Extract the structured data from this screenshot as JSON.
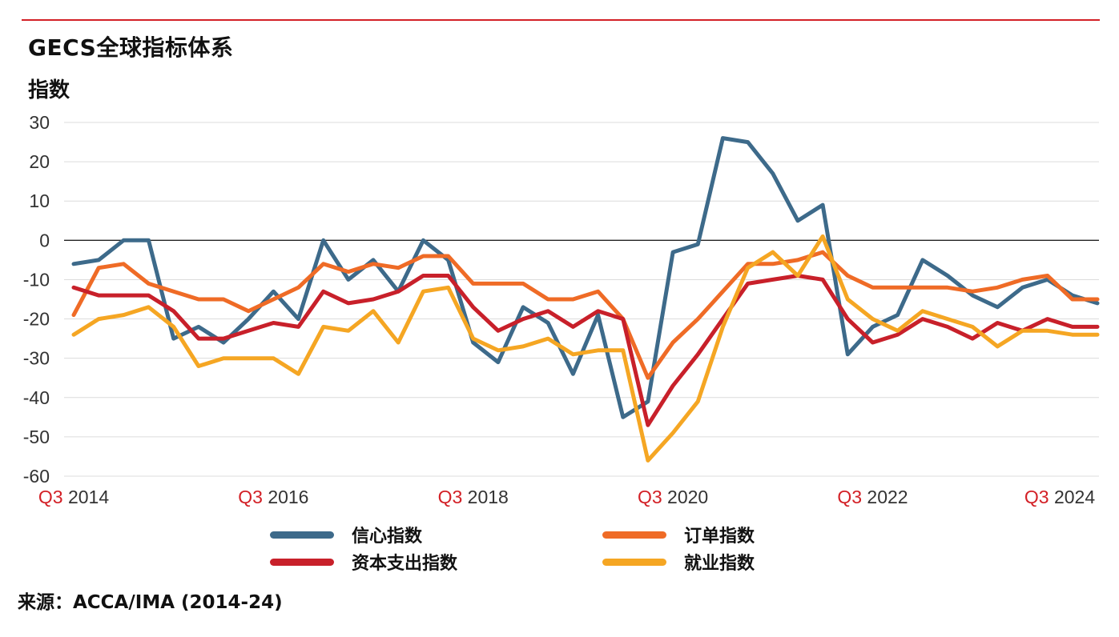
{
  "title": "GECS全球指标体系",
  "source": "来源：ACCA/IMA (2014-24)",
  "chart_data": {
    "type": "line",
    "title": "GECS全球指标体系",
    "ylabel": "指数",
    "xlabel": "",
    "ylim": [
      -60,
      30
    ],
    "yticks": [
      30,
      20,
      10,
      0,
      -10,
      -20,
      -30,
      -40,
      -50,
      -60
    ],
    "grid": true,
    "legend_position": "bottom",
    "x": [
      "Q3 2014",
      "Q4 2014",
      "Q1 2015",
      "Q2 2015",
      "Q3 2015",
      "Q4 2015",
      "Q1 2016",
      "Q2 2016",
      "Q3 2016",
      "Q4 2016",
      "Q1 2017",
      "Q2 2017",
      "Q3 2017",
      "Q4 2017",
      "Q1 2018",
      "Q2 2018",
      "Q3 2018",
      "Q4 2018",
      "Q1 2019",
      "Q2 2019",
      "Q3 2019",
      "Q4 2019",
      "Q1 2020",
      "Q2 2020",
      "Q3 2020",
      "Q4 2020",
      "Q1 2021",
      "Q2 2021",
      "Q3 2021",
      "Q4 2021",
      "Q1 2022",
      "Q2 2022",
      "Q3 2022",
      "Q4 2022",
      "Q1 2023",
      "Q2 2023",
      "Q3 2023",
      "Q4 2023",
      "Q1 2024",
      "Q2 2024",
      "Q3 2024",
      "Q4 2024"
    ],
    "xtick_labels": [
      {
        "index": 0,
        "q": "Q3",
        "year": "2014"
      },
      {
        "index": 8,
        "q": "Q3",
        "year": "2016"
      },
      {
        "index": 16,
        "q": "Q3",
        "year": "2018"
      },
      {
        "index": 24,
        "q": "Q3",
        "year": "2020"
      },
      {
        "index": 32,
        "q": "Q3",
        "year": "2022"
      },
      {
        "index": 40,
        "q": "Q3",
        "year": "2024"
      }
    ],
    "series": [
      {
        "name": "信心指数",
        "color": "#3d6a8a",
        "values": [
          -6,
          -5,
          0,
          0,
          -25,
          -22,
          -26,
          -20,
          -13,
          -20,
          0,
          -10,
          -5,
          -13,
          0,
          -5,
          -26,
          -31,
          -17,
          -21,
          -34,
          -19,
          -45,
          -41,
          -3,
          -1,
          26,
          25,
          17,
          5,
          9,
          -29,
          -22,
          -19,
          -5,
          -9,
          -14,
          -17,
          -12,
          -10,
          -14,
          -16
        ]
      },
      {
        "name": "订单指数",
        "color": "#ef6b26",
        "values": [
          -19,
          -7,
          -6,
          -11,
          -13,
          -15,
          -15,
          -18,
          -15,
          -12,
          -6,
          -8,
          -6,
          -7,
          -4,
          -4,
          -11,
          -11,
          -11,
          -15,
          -15,
          -13,
          -20,
          -35,
          -26,
          -20,
          -13,
          -6,
          -6,
          -5,
          -3,
          -9,
          -12,
          -12,
          -12,
          -12,
          -13,
          -12,
          -10,
          -9,
          -15,
          -15
        ]
      },
      {
        "name": "资本支出指数",
        "color": "#c8202a",
        "values": [
          -12,
          -14,
          -14,
          -14,
          -18,
          -25,
          -25,
          -23,
          -21,
          -22,
          -13,
          -16,
          -15,
          -13,
          -9,
          -9,
          -17,
          -23,
          -20,
          -18,
          -22,
          -18,
          -20,
          -47,
          -37,
          -29,
          -20,
          -11,
          -10,
          -9,
          -10,
          -20,
          -26,
          -24,
          -20,
          -22,
          -25,
          -21,
          -23,
          -20,
          -22,
          -22
        ]
      },
      {
        "name": "就业指数",
        "color": "#f5a623",
        "values": [
          -24,
          -20,
          -19,
          -17,
          -22,
          -32,
          -30,
          -30,
          -30,
          -34,
          -22,
          -23,
          -18,
          -26,
          -13,
          -12,
          -25,
          -28,
          -27,
          -25,
          -29,
          -28,
          -28,
          -56,
          -49,
          -41,
          -22,
          -7,
          -3,
          -9,
          1,
          -15,
          -20,
          -23,
          -18,
          -20,
          -22,
          -27,
          -23,
          -23,
          -24,
          -24
        ]
      }
    ]
  }
}
